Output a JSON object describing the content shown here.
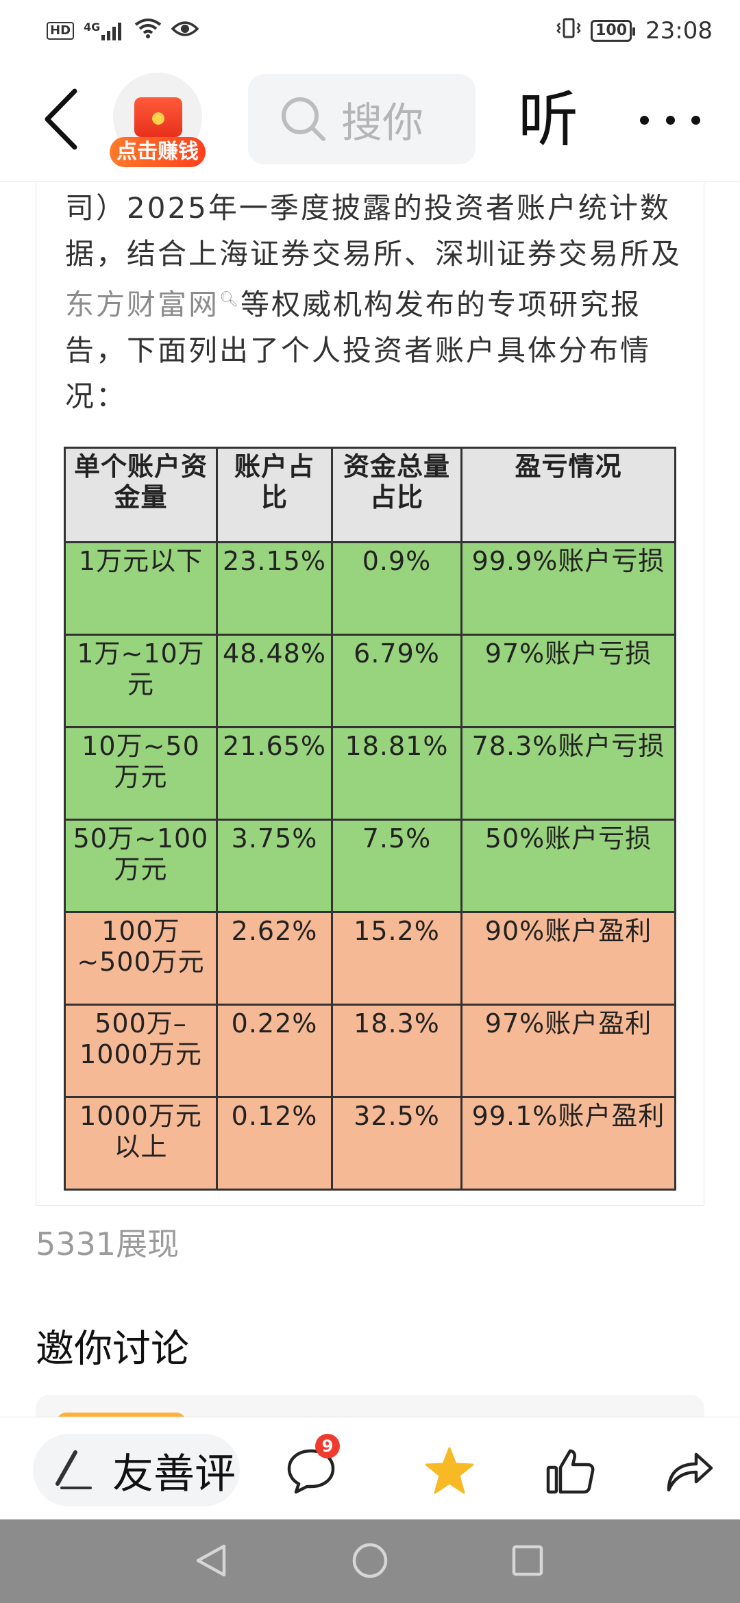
{
  "status_bar": {
    "hd": "HD",
    "network": "4G",
    "battery": "100",
    "time": "23:08"
  },
  "nav": {
    "earn_label": "点击赚钱",
    "search_placeholder": "搜你",
    "listen": "听"
  },
  "article": {
    "paragraph_before": "司）2025年一季度披露的投资者账户统计数据，结合上海证券交易所、深圳证券交易所及",
    "paragraph_link": "东方财富网",
    "paragraph_after": "等权威机构发布的专项研究报告，下面列出了个人投资者账户具体分布情况：",
    "table": {
      "headers": [
        "单个账户资金量",
        "账户占比",
        "资金总量占比",
        "盈亏情况"
      ],
      "rows": [
        {
          "band": "green",
          "cells": [
            "1万元以下",
            "23.15%",
            "0.9%",
            "99.9%账户亏损"
          ]
        },
        {
          "band": "green",
          "cells": [
            "1万~10万元",
            "48.48%",
            "6.79%",
            "97%账户亏损"
          ]
        },
        {
          "band": "green",
          "cells": [
            "10万~50万元",
            "21.65%",
            "18.81%",
            "78.3%账户亏损"
          ]
        },
        {
          "band": "green",
          "cells": [
            "50万~100万元",
            "3.75%",
            "7.5%",
            "50%账户亏损"
          ]
        },
        {
          "band": "orange",
          "cells": [
            "100万~500万元",
            "2.62%",
            "15.2%",
            "90%账户盈利"
          ]
        },
        {
          "band": "orange",
          "cells": [
            "500万–1000万元",
            "0.22%",
            "18.3%",
            "97%账户盈利"
          ]
        },
        {
          "band": "orange",
          "cells": [
            "1000万元以上",
            "0.12%",
            "32.5%",
            "99.1%账户盈利"
          ]
        }
      ]
    },
    "views": "5331展现",
    "discuss_title": "邀你讨论"
  },
  "action_bar": {
    "comment_label": "友善评",
    "comment_badge": "9"
  },
  "colors": {
    "row_green": "#98d37e",
    "row_orange": "#f6b995",
    "header_gray": "#e4e4e4",
    "star": "#f7b924",
    "badge_red": "#f03a2e"
  }
}
